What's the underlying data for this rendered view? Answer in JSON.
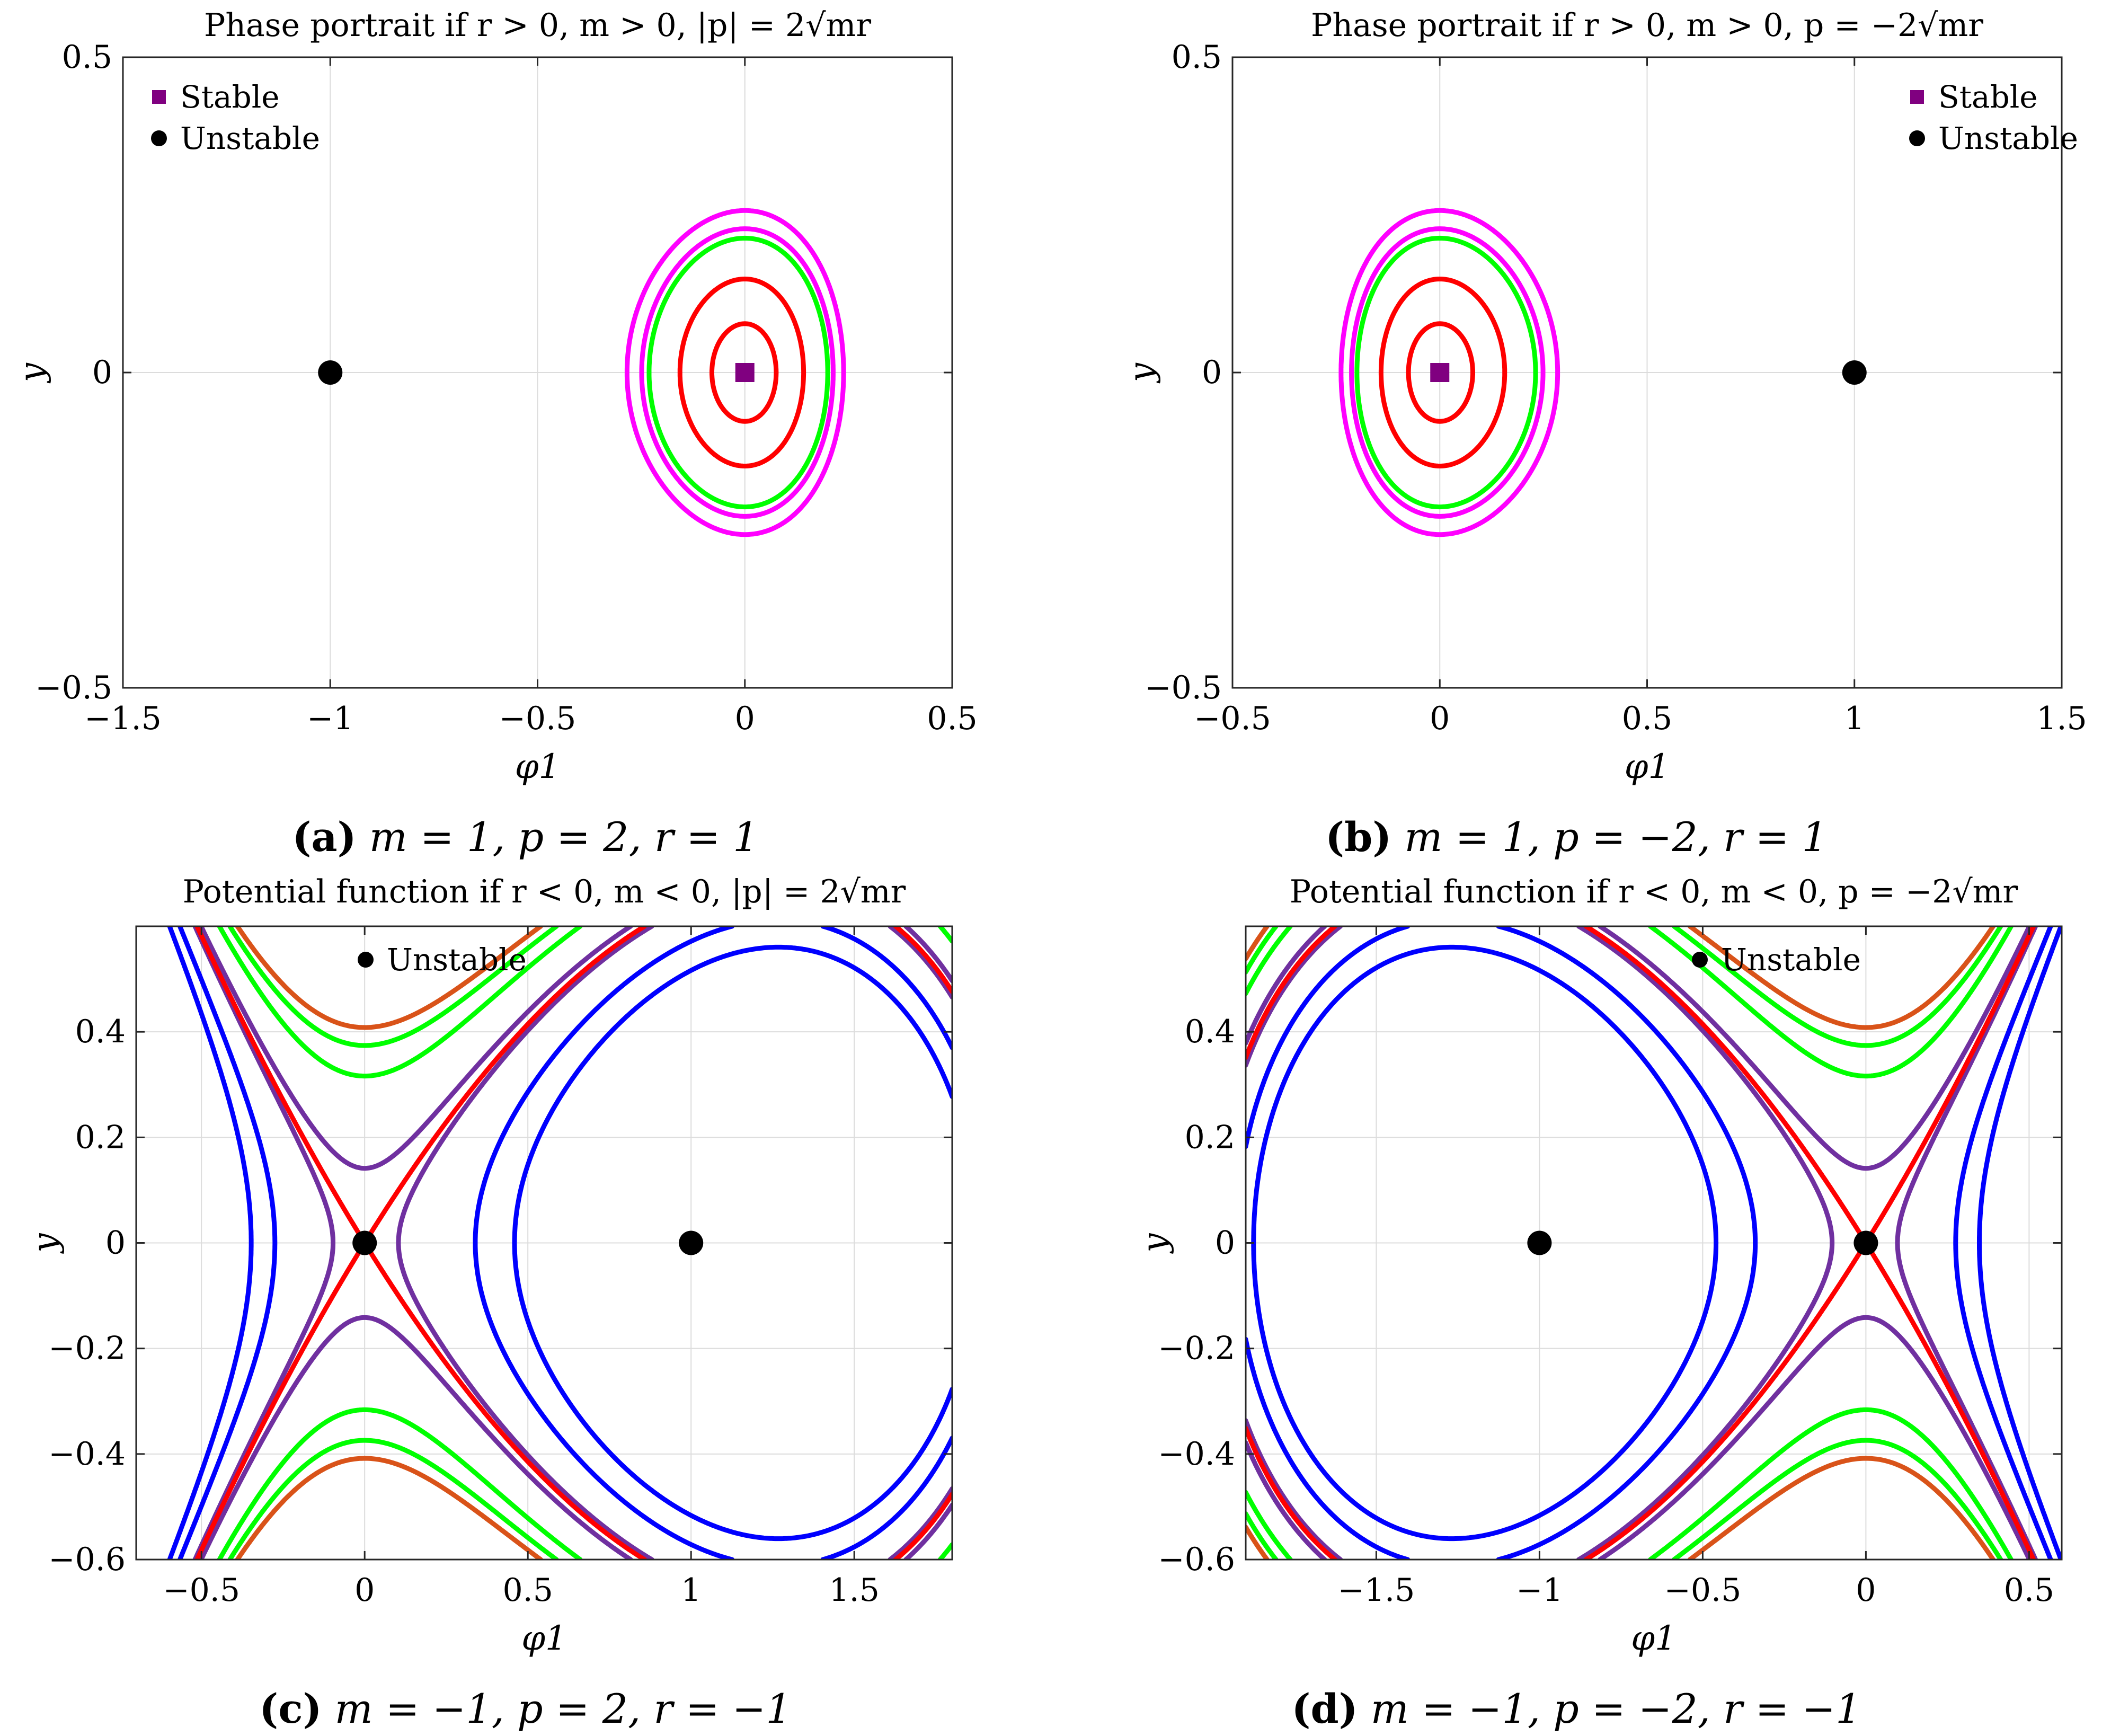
{
  "chart_data": [
    {
      "type": "line",
      "title": "Phase portrait if r > 0, m > 0, |p| = 2√mr",
      "caption_label": "(a)",
      "caption_text": "m = 1, p = 2, r = 1",
      "xlabel": "φ1",
      "ylabel": "y",
      "xlim": [
        -1.5,
        0.5
      ],
      "ylim": [
        -0.5,
        0.5
      ],
      "xticks": [
        "−1.5",
        "−1",
        "−0.5",
        "0",
        "0.5"
      ],
      "yticks": [
        "−0.5",
        "0",
        "0.5"
      ],
      "grid": true,
      "legend_position": "top-left",
      "legend": [
        {
          "label": "Stable",
          "marker": "square",
          "color": "#800080"
        },
        {
          "label": "Unstable",
          "marker": "circle",
          "color": "#000000"
        }
      ],
      "params": {
        "m": 1,
        "p": 2,
        "r": 1
      },
      "levels": [
        {
          "c": 0.003,
          "color": "#ff0000"
        },
        {
          "c": 0.011,
          "color": "#ff0000"
        },
        {
          "c": 0.0227,
          "color": "#00ff00"
        },
        {
          "c": 0.026,
          "color": "#ff00ff"
        },
        {
          "c": 0.033,
          "color": "#ff00ff"
        }
      ],
      "points": [
        {
          "x": 0,
          "y": 0,
          "type": "Stable"
        },
        {
          "x": -1,
          "y": 0,
          "type": "Unstable"
        }
      ]
    },
    {
      "type": "line",
      "title": "Phase portrait if r > 0, m > 0, p = −2√mr",
      "caption_label": "(b)",
      "caption_text": "m = 1, p = −2, r = 1",
      "xlabel": "φ1",
      "ylabel": "y",
      "xlim": [
        -0.5,
        1.5
      ],
      "ylim": [
        -0.5,
        0.5
      ],
      "xticks": [
        "−0.5",
        "0",
        "0.5",
        "1",
        "1.5"
      ],
      "yticks": [
        "−0.5",
        "0",
        "0.5"
      ],
      "grid": true,
      "legend_position": "top-right",
      "legend": [
        {
          "label": "Stable",
          "marker": "square",
          "color": "#800080"
        },
        {
          "label": "Unstable",
          "marker": "circle",
          "color": "#000000"
        }
      ],
      "params": {
        "m": 1,
        "p": -2,
        "r": 1
      },
      "levels": [
        {
          "c": 0.003,
          "color": "#ff0000"
        },
        {
          "c": 0.011,
          "color": "#ff0000"
        },
        {
          "c": 0.0227,
          "color": "#00ff00"
        },
        {
          "c": 0.026,
          "color": "#ff00ff"
        },
        {
          "c": 0.033,
          "color": "#ff00ff"
        }
      ],
      "points": [
        {
          "x": 0,
          "y": 0,
          "type": "Stable"
        },
        {
          "x": 1,
          "y": 0,
          "type": "Unstable"
        }
      ]
    },
    {
      "type": "line",
      "title": "Potential function if r < 0, m < 0, |p| = 2√mr",
      "caption_label": "(c)",
      "caption_text": "m = −1,  p = 2,  r = −1",
      "xlabel": "φ1",
      "ylabel": "y",
      "xlim": [
        -0.7,
        1.8
      ],
      "ylim": [
        -0.6,
        0.6
      ],
      "xticks": [
        "−0.5",
        "0",
        "0.5",
        "1",
        "1.5"
      ],
      "yticks": [
        "−0.6",
        "−0.4",
        "−0.2",
        "0",
        "0.2",
        "0.4"
      ],
      "grid": true,
      "legend_position": "top-center",
      "legend": [
        {
          "label": "Unstable",
          "marker": "circle",
          "color": "#000000"
        }
      ],
      "params": {
        "m": -1,
        "p": 2,
        "r": -1
      },
      "levels": [
        {
          "c": -0.075,
          "color": "#0000ff"
        },
        {
          "c": -0.045,
          "color": "#0000ff"
        },
        {
          "c": -0.005,
          "color": "#7030a0"
        },
        {
          "c": 0.01,
          "color": "#7030a0"
        },
        {
          "c": 0.0,
          "color": "#ff0000"
        },
        {
          "c": 0.07,
          "color": "#00ff00"
        },
        {
          "c": 0.05,
          "color": "#00ff00"
        },
        {
          "c": 0.083333,
          "color": "#d95319"
        }
      ],
      "points": [
        {
          "x": 0,
          "y": 0,
          "type": "Unstable"
        },
        {
          "x": 1,
          "y": 0,
          "type": "Unstable"
        }
      ]
    },
    {
      "type": "line",
      "title": "Potential function if r < 0, m < 0, p = −2√mr",
      "caption_label": "(d)",
      "caption_text": "m = −1,  p = −2,  r = −1",
      "xlabel": "φ1",
      "ylabel": "y",
      "xlim": [
        -1.9,
        0.6
      ],
      "ylim": [
        -0.6,
        0.6
      ],
      "xticks": [
        "−1.5",
        "−1",
        "−0.5",
        "0",
        "0.5"
      ],
      "yticks": [
        "−0.6",
        "−0.4",
        "−0.2",
        "0",
        "0.2",
        "0.4"
      ],
      "grid": true,
      "legend_position": "top-center",
      "legend": [
        {
          "label": "Unstable",
          "marker": "circle",
          "color": "#000000"
        }
      ],
      "params": {
        "m": -1,
        "p": -2,
        "r": -1
      },
      "levels": [
        {
          "c": -0.075,
          "color": "#0000ff"
        },
        {
          "c": -0.045,
          "color": "#0000ff"
        },
        {
          "c": -0.005,
          "color": "#7030a0"
        },
        {
          "c": 0.01,
          "color": "#7030a0"
        },
        {
          "c": 0.0,
          "color": "#ff0000"
        },
        {
          "c": 0.07,
          "color": "#00ff00"
        },
        {
          "c": 0.05,
          "color": "#00ff00"
        },
        {
          "c": 0.083333,
          "color": "#d95319"
        }
      ],
      "points": [
        {
          "x": 0,
          "y": 0,
          "type": "Unstable"
        },
        {
          "x": -1,
          "y": 0,
          "type": "Unstable"
        }
      ]
    }
  ]
}
